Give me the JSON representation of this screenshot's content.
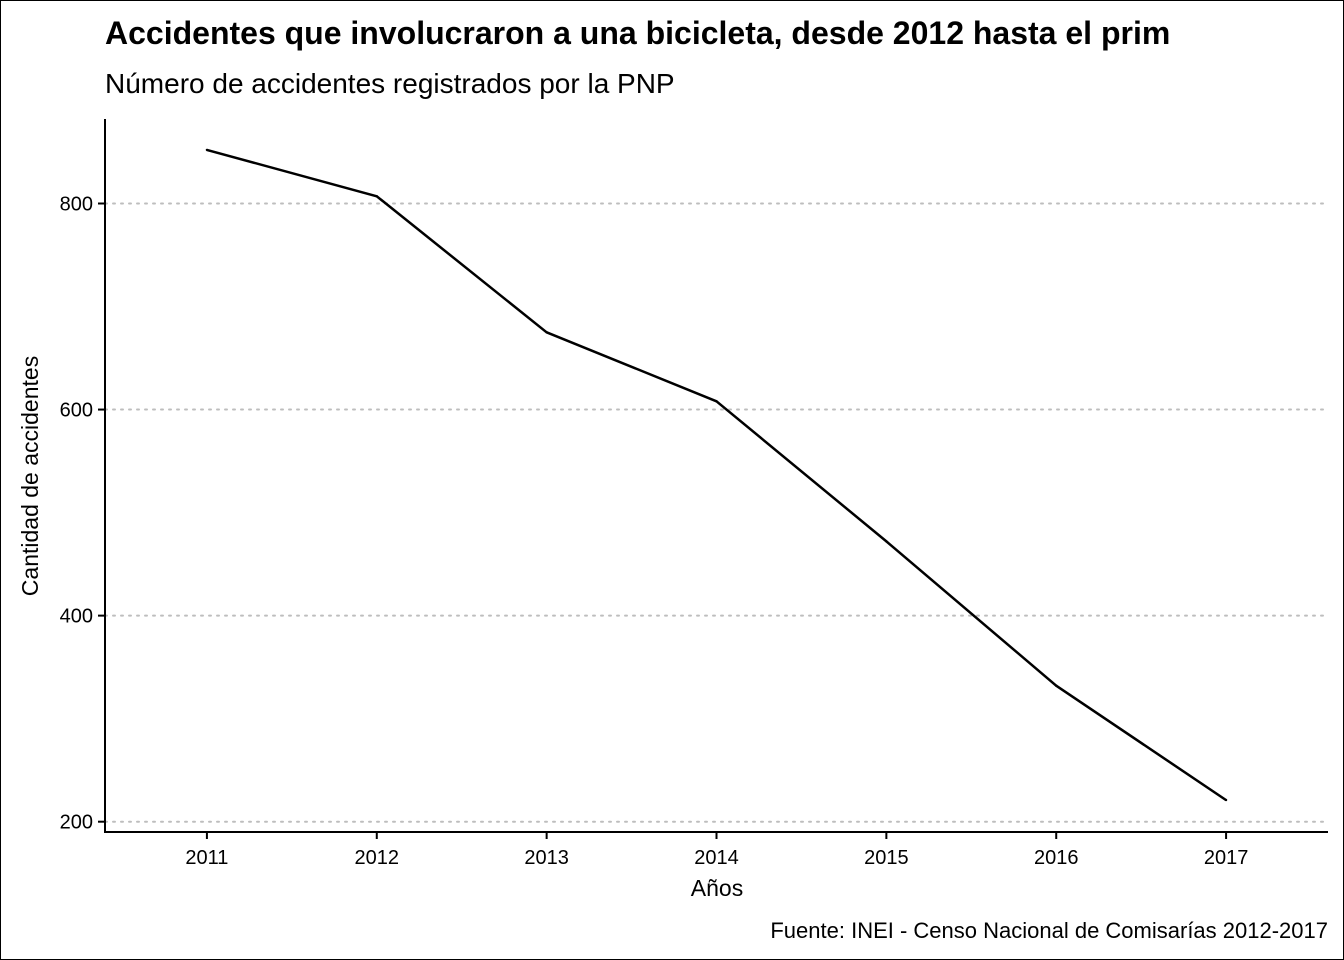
{
  "chart_data": {
    "type": "line",
    "title": "Accidentes que involucraron a una bicicleta, desde 2012 hasta el prim",
    "subtitle": "Número de accidentes registrados por la PNP",
    "xlabel": "Años",
    "ylabel": "Cantidad de accidentes",
    "caption": "Fuente: INEI - Censo Nacional de Comisarías 2012-2017",
    "x": [
      2011,
      2012,
      2013,
      2014,
      2015,
      2016,
      2017
    ],
    "x_ticks": [
      "2011",
      "2012",
      "2013",
      "2014",
      "2015",
      "2016",
      "2017"
    ],
    "y_ticks": [
      200,
      400,
      600,
      800
    ],
    "y_tick_labels": [
      "200",
      "400",
      "600",
      "800"
    ],
    "xlim": [
      2010.4,
      2017.6
    ],
    "ylim": [
      190,
      882
    ],
    "series": [
      {
        "values": [
          852,
          807,
          675,
          608,
          472,
          332,
          221
        ]
      }
    ],
    "grid": "horizontal-major-dotted",
    "colors": {
      "line": "#000000",
      "grid": "#bebebe",
      "axis": "#000000"
    }
  }
}
